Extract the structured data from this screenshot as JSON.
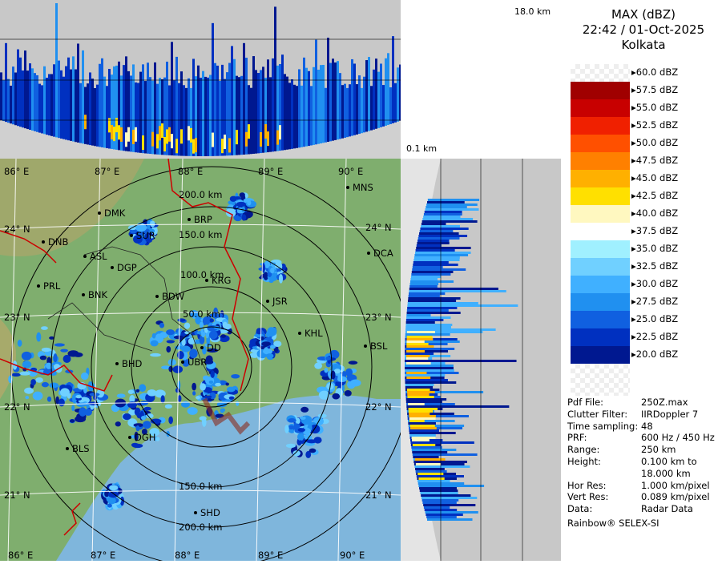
{
  "top_profile": {
    "height_top_label": "18.0 km",
    "height_bottom_label": "0.1 km"
  },
  "legend": {
    "title": "MAX (dBZ)",
    "datetime": "22:42 / 01-Oct-2025",
    "station": "Kolkata",
    "levels": [
      {
        "label": "60.0 dBZ",
        "color": "checker"
      },
      {
        "label": "57.5 dBZ",
        "color": "#a00000"
      },
      {
        "label": "55.0 dBZ",
        "color": "#c80000"
      },
      {
        "label": "52.5 dBZ",
        "color": "#f02000"
      },
      {
        "label": "50.0 dBZ",
        "color": "#ff5000"
      },
      {
        "label": "47.5 dBZ",
        "color": "#ff8000"
      },
      {
        "label": "45.0 dBZ",
        "color": "#ffb000"
      },
      {
        "label": "42.5 dBZ",
        "color": "#ffe000"
      },
      {
        "label": "40.0 dBZ",
        "color": "#fff8c0"
      },
      {
        "label": "37.5 dBZ",
        "color": "#ffffff"
      },
      {
        "label": "35.0 dBZ",
        "color": "#a0f0ff"
      },
      {
        "label": "32.5 dBZ",
        "color": "#70d0ff"
      },
      {
        "label": "30.0 dBZ",
        "color": "#40b0ff"
      },
      {
        "label": "27.5 dBZ",
        "color": "#2090f0"
      },
      {
        "label": "25.0 dBZ",
        "color": "#1060e0"
      },
      {
        "label": "22.5 dBZ",
        "color": "#0030c0"
      },
      {
        "label": "20.0 dBZ",
        "color": "#001890"
      }
    ]
  },
  "info": [
    {
      "key": "Pdf File:",
      "value": "250Z.max"
    },
    {
      "key": "Clutter Filter:",
      "value": "IIRDoppler 7"
    },
    {
      "key": "Time sampling:",
      "value": "48"
    },
    {
      "key": "PRF:",
      "value": "600 Hz / 450 Hz"
    },
    {
      "key": "Range:",
      "value": "250 km"
    },
    {
      "key": "Height:",
      "value": "0.100 km to"
    },
    {
      "key": "",
      "value": "18.000 km"
    },
    {
      "key": "Hor Res:",
      "value": "1.000 km/pixel"
    },
    {
      "key": "Vert Res:",
      "value": "0.089 km/pixel"
    },
    {
      "key": "Data:",
      "value": "Radar Data"
    }
  ],
  "footer": "Rainbow® SELEX-SI",
  "map": {
    "lon_labels": [
      "86° E",
      "87° E",
      "88° E",
      "89° E",
      "90° E"
    ],
    "lat_labels": [
      "24° N",
      "23° N",
      "22° N",
      "21° N"
    ],
    "range_labels": [
      "50.0 km",
      "100.0 km",
      "150.0 km",
      "200.0 km",
      "150.0 km",
      "200.0 km"
    ],
    "stations": [
      "MNS",
      "DMK",
      "BRP",
      "DNB",
      "SUR",
      "ASL",
      "DCA",
      "DGP",
      "KRG",
      "PRL",
      "BNK",
      "BDW",
      "JSR",
      "KHL",
      "DD",
      "BSL",
      "UBR",
      "BHD",
      "DGH",
      "BLS",
      "SHD"
    ],
    "colors": {
      "land": "#7fae6e",
      "sea": "#7fb6dc",
      "rain": "#1060e0"
    }
  }
}
